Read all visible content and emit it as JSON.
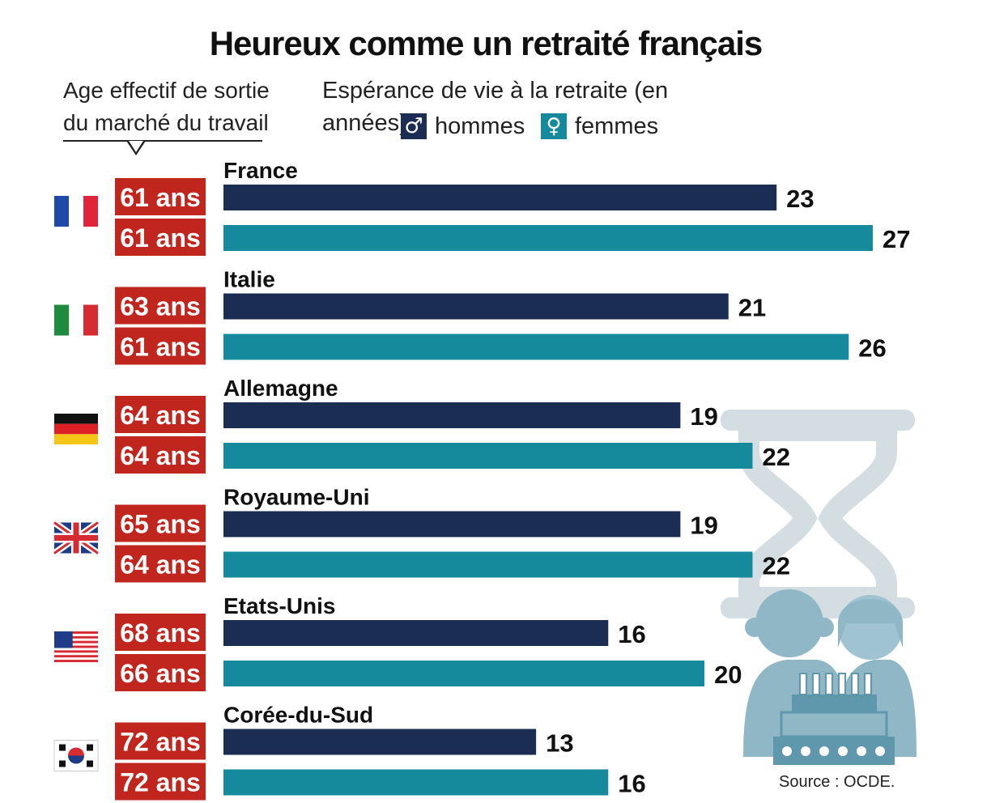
{
  "title": "Heureux comme un retraité français",
  "age_header": "Age effectif de sortie du marché du travail",
  "life_header": "Espérance de vie à la retraite (en années)",
  "legend": {
    "men": {
      "label": "hommes",
      "symbol": "♂",
      "color": "#1b2d52"
    },
    "women": {
      "label": "femmes",
      "symbol": "♀",
      "color": "#158a9c"
    }
  },
  "source": "Source : OCDE.",
  "colors": {
    "age_badge": "#c0261d",
    "men": "#1b2d52",
    "women": "#158a9c",
    "hourglass": "#d3dde2",
    "people": "#8fb7c6"
  },
  "chart_data": {
    "type": "bar",
    "orientation": "horizontal",
    "categories": [
      "France",
      "Italie",
      "Allemagne",
      "Royaume-Uni",
      "Etats-Unis",
      "Corée-du-Sud"
    ],
    "flags": [
      "flag-france",
      "flag-italy",
      "flag-germany",
      "flag-uk",
      "flag-usa",
      "flag-south-korea"
    ],
    "series": [
      {
        "name": "hommes",
        "values": [
          23,
          21,
          19,
          19,
          16,
          13
        ]
      },
      {
        "name": "femmes",
        "values": [
          27,
          26,
          22,
          22,
          20,
          16
        ]
      }
    ],
    "exit_age": {
      "hommes": [
        "61 ans",
        "63 ans",
        "64 ans",
        "65 ans",
        "68 ans",
        "72 ans"
      ],
      "femmes": [
        "61 ans",
        "61 ans",
        "64 ans",
        "64 ans",
        "66 ans",
        "72 ans"
      ]
    },
    "xlim": [
      0,
      27
    ],
    "grid": false,
    "legend_position": "top"
  }
}
